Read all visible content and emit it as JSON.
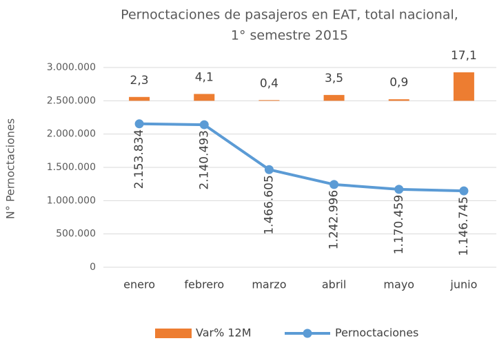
{
  "chart_data": {
    "type": "bar+line",
    "title": [
      "Pernoctaciones de pasajeros en EAT, total nacional,",
      "1° semestre 2015"
    ],
    "ylabel": "N° Pernoctaciones",
    "categories": [
      "enero",
      "febrero",
      "marzo",
      "abril",
      "mayo",
      "junio"
    ],
    "ylim": [
      0,
      3000000
    ],
    "yticks": [
      0,
      {
        "value": 500000,
        "label": "500.000"
      },
      {
        "value": 1000000,
        "label": "1.000.000"
      },
      {
        "value": 1500000,
        "label": "1.500.000"
      },
      {
        "value": 2000000,
        "label": "2.000.000"
      },
      {
        "value": 2500000,
        "label": "2.500.000"
      },
      {
        "value": 3000000,
        "label": "3.000.000"
      }
    ],
    "y2lim": [
      -100,
      20
    ],
    "grid": true,
    "legend": "bottom",
    "series": [
      {
        "name": "Var% 12M",
        "type": "bar",
        "axis": "y2",
        "color": "#ed7d31",
        "values": [
          2.3,
          4.1,
          0.4,
          3.5,
          0.9,
          17.1
        ],
        "value_labels": [
          "2,3",
          "4,1",
          "0,4",
          "3,5",
          "0,9",
          "17,1"
        ]
      },
      {
        "name": "Pernoctaciones",
        "type": "line",
        "color": "#5b9bd5",
        "values": [
          2153834,
          2140493,
          1466605,
          1242996,
          1170459,
          1146745
        ],
        "value_labels": [
          "2.153.834",
          "2.140.493",
          "1.466.605",
          "1.242.996",
          "1.170.459",
          "1.146.745"
        ]
      }
    ]
  }
}
